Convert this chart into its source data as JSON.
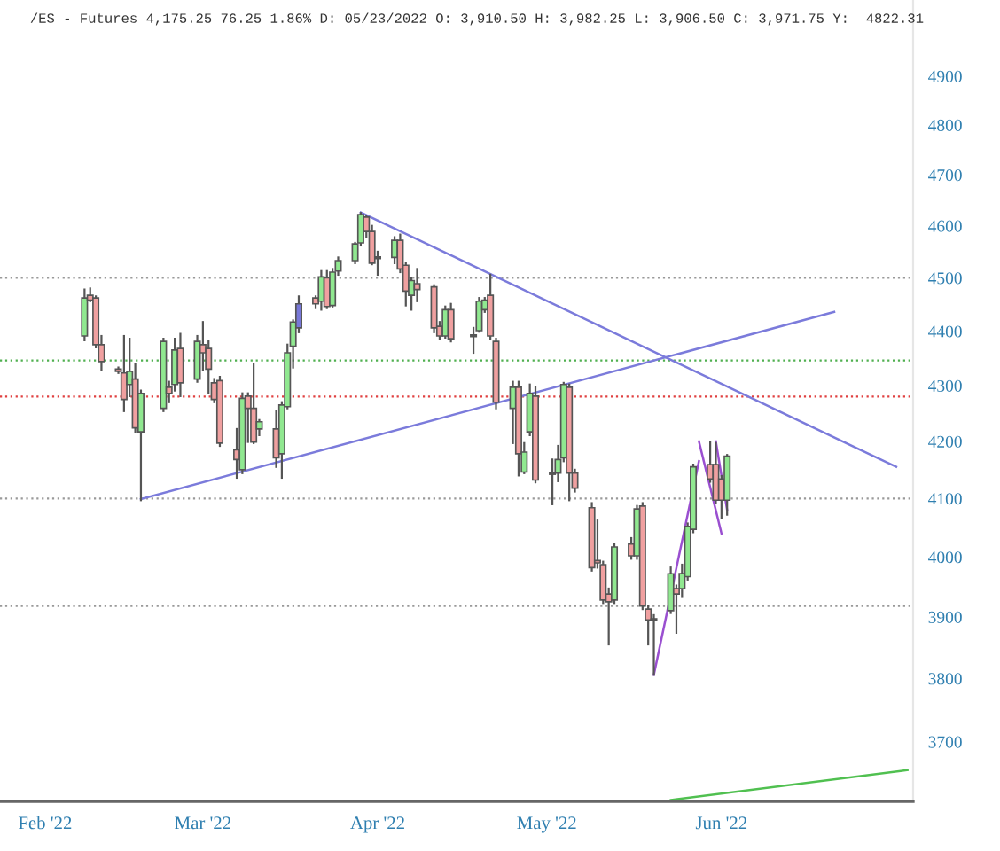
{
  "chart_data": {
    "type": "candlestick",
    "title": "/ES - Futures 4,175.25 76.25 1.86% D: 05/23/2022 O: 3,910.50 H: 3,982.25 L: 3,906.50 C: 3,971.75 Y:  4822.31",
    "x": [
      "2022-02-08",
      "2022-02-09",
      "2022-02-10",
      "2022-02-11",
      "2022-02-14",
      "2022-02-15",
      "2022-02-16",
      "2022-02-17",
      "2022-02-18",
      "2022-02-22",
      "2022-02-23",
      "2022-02-24",
      "2022-02-25",
      "2022-02-28",
      "2022-03-01",
      "2022-03-02",
      "2022-03-03",
      "2022-03-04",
      "2022-03-07",
      "2022-03-08",
      "2022-03-09",
      "2022-03-10",
      "2022-03-11",
      "2022-03-14",
      "2022-03-15",
      "2022-03-16",
      "2022-03-17",
      "2022-03-18",
      "2022-03-21",
      "2022-03-22",
      "2022-03-23",
      "2022-03-24",
      "2022-03-25",
      "2022-03-28",
      "2022-03-29",
      "2022-03-30",
      "2022-03-31",
      "2022-04-01",
      "2022-04-04",
      "2022-04-05",
      "2022-04-06",
      "2022-04-07",
      "2022-04-08",
      "2022-04-11",
      "2022-04-12",
      "2022-04-13",
      "2022-04-14",
      "2022-04-18",
      "2022-04-19",
      "2022-04-20",
      "2022-04-21",
      "2022-04-22",
      "2022-04-25",
      "2022-04-26",
      "2022-04-27",
      "2022-04-28",
      "2022-04-29",
      "2022-05-02",
      "2022-05-03",
      "2022-05-04",
      "2022-05-05",
      "2022-05-06",
      "2022-05-09",
      "2022-05-10",
      "2022-05-11",
      "2022-05-12",
      "2022-05-13",
      "2022-05-16",
      "2022-05-17",
      "2022-05-18",
      "2022-05-19",
      "2022-05-20",
      "2022-05-23",
      "2022-05-24",
      "2022-05-25",
      "2022-05-26",
      "2022-05-27",
      "2022-05-30",
      "2022-05-31",
      "2022-06-01",
      "2022-06-02"
    ],
    "ohlc": [
      [
        4391,
        4478,
        4383,
        4462
      ],
      [
        4467,
        4480,
        4456,
        4458
      ],
      [
        4462,
        4465,
        4370,
        4375
      ],
      [
        4375,
        4391,
        4328,
        4344
      ],
      [
        4330,
        4333,
        4323,
        4326
      ],
      [
        4323,
        4391,
        4254,
        4275
      ],
      [
        4302,
        4386,
        4281,
        4326
      ],
      [
        4312,
        4339,
        4217,
        4224
      ],
      [
        4217,
        4291,
        4097,
        4286
      ],
      [
        4259,
        4386,
        4254,
        4381
      ],
      [
        4297,
        4307,
        4270,
        4286
      ],
      [
        4302,
        4386,
        4291,
        4365
      ],
      [
        4368,
        4395,
        4281,
        4305
      ],
      [
        4312,
        4391,
        4307,
        4381
      ],
      [
        4375,
        4417,
        4328,
        4360
      ],
      [
        4368,
        4381,
        4286,
        4330
      ],
      [
        4305,
        4312,
        4270,
        4275
      ],
      [
        4309,
        4316,
        4192,
        4197
      ],
      [
        4185,
        4222,
        4136,
        4168
      ],
      [
        4150,
        4286,
        4144,
        4277
      ],
      [
        4281,
        4286,
        4199,
        4259
      ],
      [
        4259,
        4339,
        4197,
        4199
      ],
      [
        4222,
        4238,
        4211,
        4235
      ],
      [
        4222,
        4254,
        4155,
        4171
      ],
      [
        4178,
        4270,
        4136,
        4265
      ],
      [
        4262,
        4375,
        4259,
        4360
      ],
      [
        4372,
        4420,
        4333,
        4417
      ],
      [
        4406,
        4465,
        4398,
        4451
      ],
      [
        4462,
        4465,
        4443,
        4451
      ],
      [
        4456,
        4513,
        4440,
        4502
      ],
      [
        4500,
        4513,
        4443,
        4446
      ],
      [
        4448,
        4517,
        4446,
        4511
      ],
      [
        4513,
        4539,
        4506,
        4533
      ],
      [
        4533,
        4567,
        4528,
        4565
      ],
      [
        4567,
        4625,
        4562,
        4622
      ],
      [
        4617,
        4620,
        4578,
        4589
      ],
      [
        4589,
        4600,
        4526,
        4528
      ],
      [
        4537,
        4550,
        4506,
        4540
      ],
      [
        4539,
        4578,
        4528,
        4572
      ],
      [
        4572,
        4583,
        4511,
        4517
      ],
      [
        4524,
        4528,
        4448,
        4475
      ],
      [
        4467,
        4500,
        4440,
        4495
      ],
      [
        4489,
        4517,
        4456,
        4478
      ],
      [
        4483,
        4486,
        4398,
        4406
      ],
      [
        4409,
        4417,
        4386,
        4391
      ],
      [
        4391,
        4446,
        4388,
        4440
      ],
      [
        4440,
        4451,
        4381,
        4386
      ],
      [
        4393,
        4406,
        4360,
        4390
      ],
      [
        4401,
        4462,
        4399,
        4456
      ],
      [
        4440,
        4462,
        4436,
        4458
      ],
      [
        4467,
        4506,
        4386,
        4391
      ],
      [
        4381,
        4386,
        4259,
        4270
      ],
      [
        4259,
        4307,
        4197,
        4297
      ],
      [
        4297,
        4307,
        4140,
        4178
      ],
      [
        4146,
        4197,
        4144,
        4181
      ],
      [
        4217,
        4302,
        4211,
        4286
      ],
      [
        4281,
        4297,
        4128,
        4132
      ],
      [
        4144,
        4168,
        4090,
        4142
      ],
      [
        4144,
        4192,
        4130,
        4168
      ],
      [
        4171,
        4305,
        4165,
        4302
      ],
      [
        4297,
        4302,
        4097,
        4144
      ],
      [
        4144,
        4150,
        4112,
        4118
      ],
      [
        4084,
        4092,
        3977,
        3982
      ],
      [
        3994,
        4062,
        3982,
        3990
      ],
      [
        3987,
        3992,
        3923,
        3928
      ],
      [
        3938,
        3947,
        3855,
        3925
      ],
      [
        3928,
        4022,
        3923,
        4017
      ],
      [
        4022,
        4032,
        3997,
        4002
      ],
      [
        4002,
        4087,
        3997,
        4082
      ],
      [
        4087,
        4092,
        3913,
        3918
      ],
      [
        3913,
        3918,
        3855,
        3895
      ],
      [
        3897,
        3903,
        3806,
        3895
      ],
      [
        3910.5,
        3982.25,
        3906.5,
        3971.75
      ],
      [
        3947,
        3952,
        3874,
        3938
      ],
      [
        3947,
        3987,
        3933,
        3972
      ],
      [
        3967,
        4057,
        3962,
        4052
      ],
      [
        4047,
        4159,
        4042,
        4155
      ],
      [
        4159,
        4199,
        4129,
        4134
      ],
      [
        4159,
        4197,
        4092,
        4097
      ],
      [
        4134,
        4139,
        4067,
        4097
      ],
      [
        4097,
        4176,
        4072,
        4174
      ]
    ],
    "colors": [
      "#90e890",
      "#f0a0a0",
      "#f0a0a0",
      "#f0a0a0",
      "#f0a0a0",
      "#f0a0a0",
      "#90e890",
      "#f0a0a0",
      "#90e890",
      "#90e890",
      "#f0a0a0",
      "#90e890",
      "#f0a0a0",
      "#90e890",
      "#f0a0a0",
      "#f0a0a0",
      "#f0a0a0",
      "#f0a0a0",
      "#f0a0a0",
      "#90e890",
      "#f0a0a0",
      "#f0a0a0",
      "#90e890",
      "#f0a0a0",
      "#90e890",
      "#90e890",
      "#90e890",
      "#7878d8",
      "#f0a0a0",
      "#90e890",
      "#f0a0a0",
      "#90e890",
      "#90e890",
      "#90e890",
      "#90e890",
      "#f0a0a0",
      "#f0a0a0",
      "#90e890",
      "#90e890",
      "#f0a0a0",
      "#f0a0a0",
      "#90e890",
      "#f0a0a0",
      "#f0a0a0",
      "#f0a0a0",
      "#90e890",
      "#f0a0a0",
      "#f0a0a0",
      "#90e890",
      "#90e890",
      "#f0a0a0",
      "#f0a0a0",
      "#90e890",
      "#f0a0a0",
      "#90e890",
      "#90e890",
      "#f0a0a0",
      "#f0a0a0",
      "#90e890",
      "#90e890",
      "#f0a0a0",
      "#f0a0a0",
      "#f0a0a0",
      "#f0a0a0",
      "#f0a0a0",
      "#f0a0a0",
      "#90e890",
      "#f0a0a0",
      "#90e890",
      "#f0a0a0",
      "#f0a0a0",
      "#f0a0a0",
      "#90e890",
      "#f0a0a0",
      "#90e890",
      "#90e890",
      "#90e890",
      "#f0a0a0",
      "#f0a0a0",
      "#f0a0a0",
      "#90e890"
    ],
    "series": [
      {
        "type": "line",
        "color": "#7b7bdb",
        "x": [
          "2022-03-29",
          "2022-07-02"
        ],
        "values": [
          4626,
          4155
        ]
      },
      {
        "type": "line",
        "color": "#7b7bdb",
        "x": [
          "2022-02-18",
          "2022-06-21"
        ],
        "values": [
          4099,
          4436
        ]
      },
      {
        "type": "line",
        "color": "#9a4fd0",
        "x": [
          "2022-05-20",
          "2022-05-28"
        ],
        "values": [
          3806,
          4165
        ]
      },
      {
        "type": "line",
        "color": "#9a4fd0",
        "x": [
          "2022-05-28",
          "2022-06-01"
        ],
        "values": [
          4200,
          4040
        ]
      },
      {
        "type": "line",
        "color": "#9a4fd0",
        "x": [
          "2022-05-31",
          "2022-06-02"
        ],
        "values": [
          4200,
          4080
        ]
      },
      {
        "type": "line",
        "color": "#50c050",
        "x": [
          "2022-05-23",
          "2022-07-04"
        ],
        "values": [
          3610,
          3656
        ]
      }
    ],
    "ref_lines": [
      {
        "axis": "y",
        "value": 4500,
        "color": "#999999",
        "line_style": "dotted"
      },
      {
        "axis": "y",
        "value": 4346,
        "color": "#50b050",
        "line_style": "dotted"
      },
      {
        "axis": "y",
        "value": 4280,
        "color": "#e04040",
        "line_style": "dotted"
      },
      {
        "axis": "y",
        "value": 4100,
        "color": "#999999",
        "line_style": "dotted"
      },
      {
        "axis": "y",
        "value": 3918,
        "color": "#999999",
        "line_style": "dotted"
      }
    ],
    "log": true,
    "ylim": [
      3608,
      5060
    ],
    "yticks": [
      3700,
      3800,
      3900,
      4000,
      4100,
      4200,
      4300,
      4400,
      4500,
      4600,
      4700,
      4800,
      4900
    ],
    "xlim": [
      "2022-01-24",
      "2022-07-05"
    ],
    "xticks": [
      {
        "value": "2022-02-01",
        "label": "Feb '22"
      },
      {
        "value": "2022-03-01",
        "label": "Mar '22"
      },
      {
        "value": "2022-04-01",
        "label": "Apr '22"
      },
      {
        "value": "2022-05-01",
        "label": "May '22"
      },
      {
        "value": "2022-06-01",
        "label": "Jun '22"
      }
    ],
    "grid": false,
    "legend": false
  }
}
